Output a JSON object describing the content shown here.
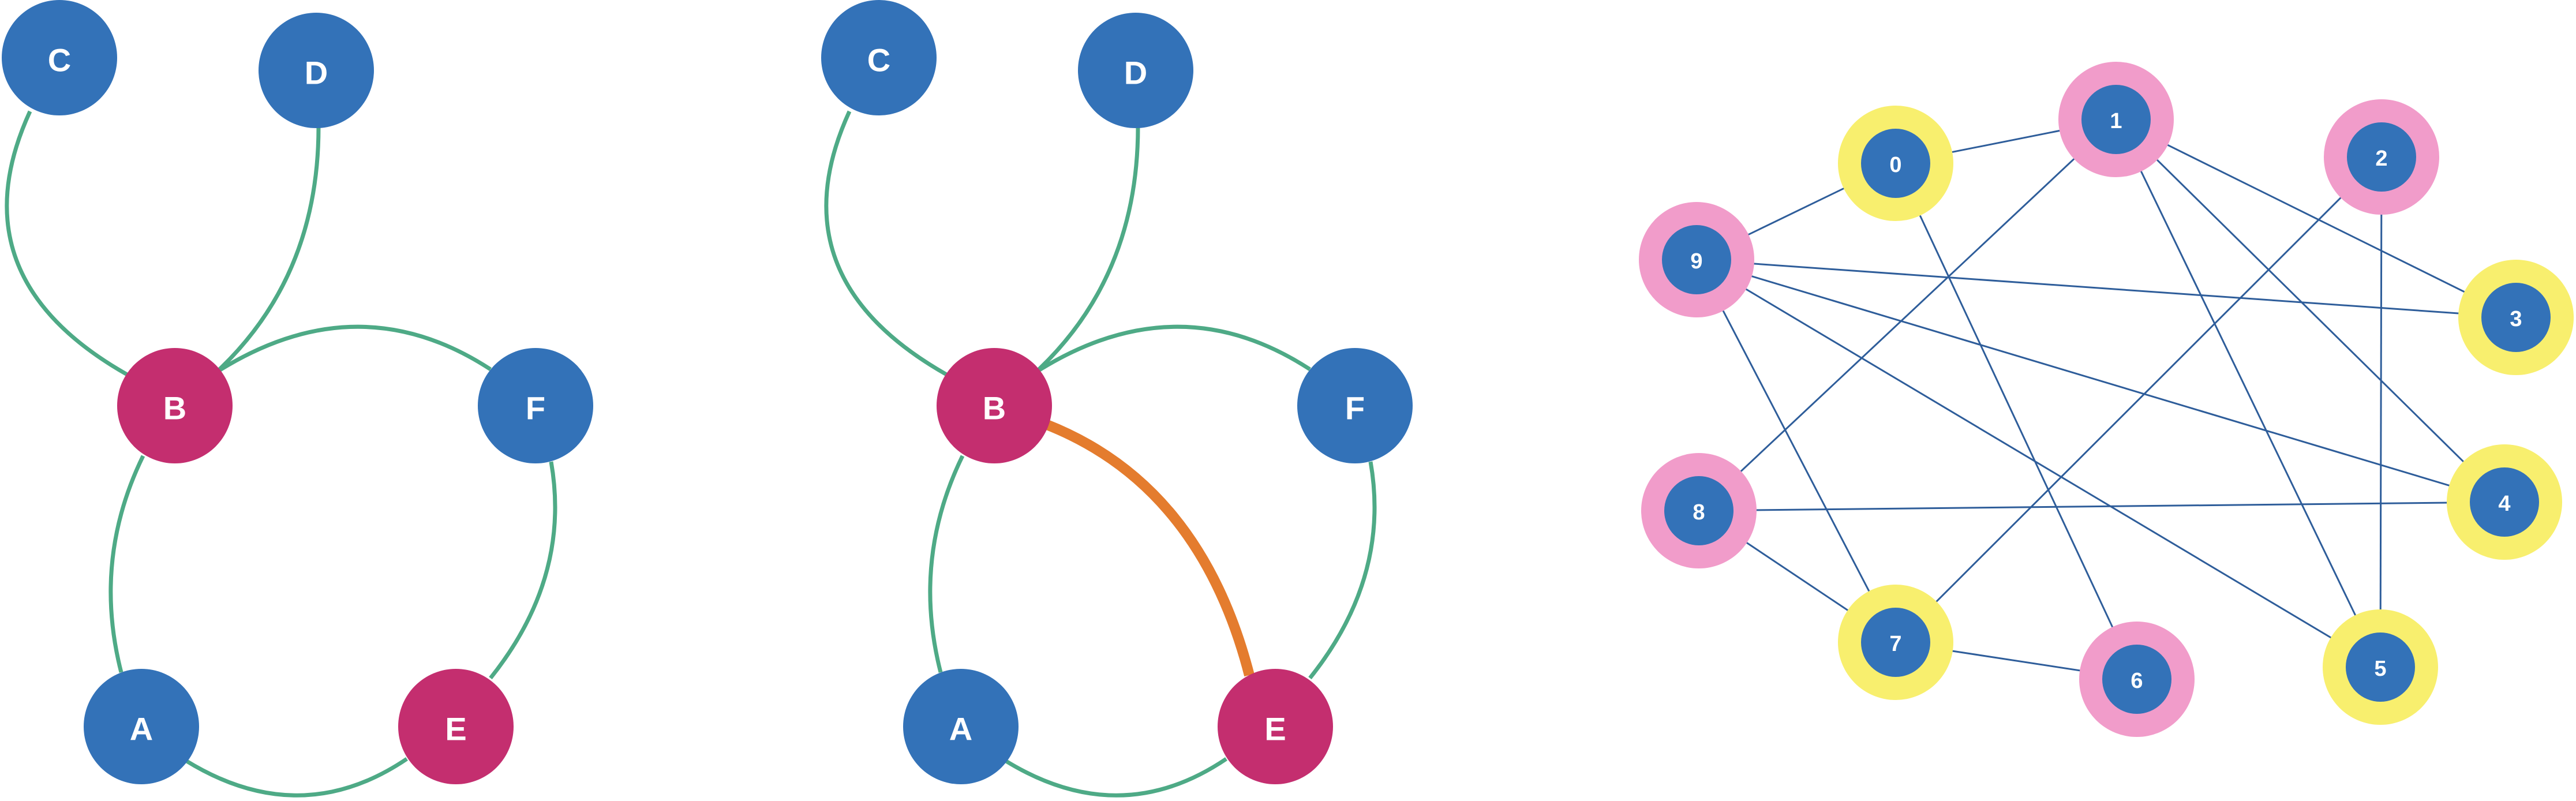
{
  "colors": {
    "node_blue": "#3372b8",
    "node_magenta": "#c42e6f",
    "edge_green": "#4eaa86",
    "edge_highlight": "#e47c2e",
    "edge_blue": "#2e5d9a",
    "ring_pink": "#f19cca",
    "ring_yellow": "#f8ef6e"
  },
  "graph1": {
    "nodes": [
      {
        "id": "C",
        "label": "C",
        "color": "blue"
      },
      {
        "id": "D",
        "label": "D",
        "color": "blue"
      },
      {
        "id": "B",
        "label": "B",
        "color": "magenta"
      },
      {
        "id": "F",
        "label": "F",
        "color": "blue"
      },
      {
        "id": "A",
        "label": "A",
        "color": "blue"
      },
      {
        "id": "E",
        "label": "E",
        "color": "magenta"
      }
    ],
    "edges": [
      [
        "C",
        "B"
      ],
      [
        "D",
        "B"
      ],
      [
        "B",
        "F"
      ],
      [
        "B",
        "A"
      ],
      [
        "A",
        "E"
      ],
      [
        "E",
        "F"
      ]
    ]
  },
  "graph2": {
    "nodes": [
      {
        "id": "C",
        "label": "C",
        "color": "blue"
      },
      {
        "id": "D",
        "label": "D",
        "color": "blue"
      },
      {
        "id": "B",
        "label": "B",
        "color": "magenta"
      },
      {
        "id": "F",
        "label": "F",
        "color": "blue"
      },
      {
        "id": "A",
        "label": "A",
        "color": "blue"
      },
      {
        "id": "E",
        "label": "E",
        "color": "magenta"
      }
    ],
    "edges": [
      [
        "C",
        "B"
      ],
      [
        "D",
        "B"
      ],
      [
        "B",
        "F"
      ],
      [
        "B",
        "A"
      ],
      [
        "A",
        "E"
      ],
      [
        "E",
        "F"
      ]
    ],
    "highlighted_edge": [
      "B",
      "E"
    ]
  },
  "graph3": {
    "nodes": [
      {
        "id": "0",
        "label": "0",
        "ring": "yellow"
      },
      {
        "id": "1",
        "label": "1",
        "ring": "pink"
      },
      {
        "id": "2",
        "label": "2",
        "ring": "pink"
      },
      {
        "id": "3",
        "label": "3",
        "ring": "yellow"
      },
      {
        "id": "4",
        "label": "4",
        "ring": "yellow"
      },
      {
        "id": "5",
        "label": "5",
        "ring": "yellow"
      },
      {
        "id": "6",
        "label": "6",
        "ring": "pink"
      },
      {
        "id": "7",
        "label": "7",
        "ring": "yellow"
      },
      {
        "id": "8",
        "label": "8",
        "ring": "pink"
      },
      {
        "id": "9",
        "label": "9",
        "ring": "pink"
      }
    ],
    "edges": [
      [
        "0",
        "1"
      ],
      [
        "0",
        "9"
      ],
      [
        "0",
        "6"
      ],
      [
        "1",
        "8"
      ],
      [
        "1",
        "3"
      ],
      [
        "1",
        "4"
      ],
      [
        "1",
        "5"
      ],
      [
        "2",
        "7"
      ],
      [
        "2",
        "5"
      ],
      [
        "9",
        "3"
      ],
      [
        "9",
        "4"
      ],
      [
        "9",
        "5"
      ],
      [
        "9",
        "7"
      ],
      [
        "8",
        "4"
      ],
      [
        "8",
        "7"
      ],
      [
        "7",
        "6"
      ]
    ]
  }
}
